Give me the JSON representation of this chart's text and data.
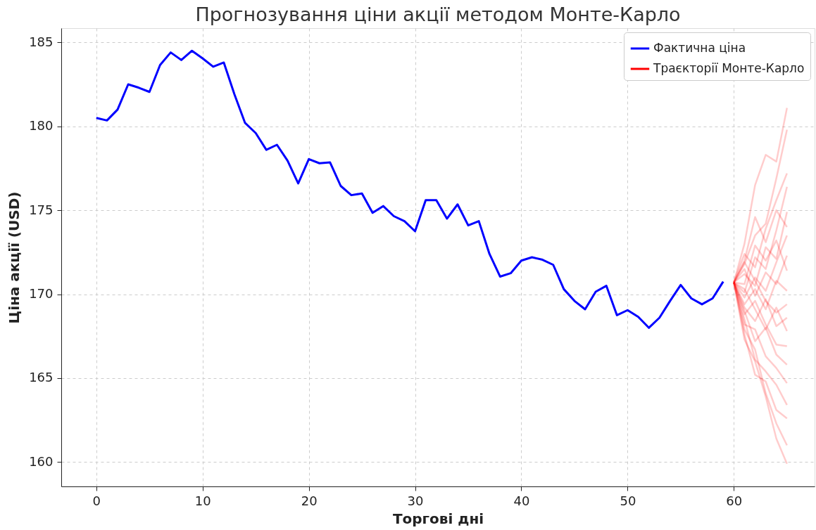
{
  "chart_data": {
    "type": "line",
    "title": "Прогнозування ціни акції методом Монте-Карло",
    "xlabel": "Торгові дні",
    "ylabel": "Ціна акції (USD)",
    "xlim": [
      -3.3,
      67.6
    ],
    "ylim": [
      158.55,
      185.85
    ],
    "xticks": [
      0,
      10,
      20,
      30,
      40,
      50,
      60
    ],
    "yticks": [
      160,
      165,
      170,
      175,
      180,
      185
    ],
    "grid": true,
    "legend": "top right",
    "line_style": "solid",
    "marker": "none",
    "series": [
      {
        "name": "Фактична ціна",
        "color": "#0000ff",
        "x": [
          0,
          1,
          2,
          3,
          4,
          5,
          6,
          7,
          8,
          9,
          10,
          11,
          12,
          13,
          14,
          15,
          16,
          17,
          18,
          19,
          20,
          21,
          22,
          23,
          24,
          25,
          26,
          27,
          28,
          29,
          30,
          31,
          32,
          33,
          34,
          35,
          36,
          37,
          38,
          39,
          40,
          41,
          42,
          43,
          44,
          45,
          46,
          47,
          48,
          49,
          50,
          51,
          52,
          53,
          54,
          55,
          56,
          57,
          58,
          59
        ],
        "values": [
          180.5,
          180.35,
          181.0,
          182.5,
          182.3,
          182.05,
          183.65,
          184.4,
          183.95,
          184.5,
          184.05,
          183.55,
          183.8,
          181.9,
          180.2,
          179.6,
          178.6,
          178.9,
          177.95,
          176.6,
          178.05,
          177.8,
          177.85,
          176.45,
          175.9,
          176.0,
          174.85,
          175.25,
          174.65,
          174.35,
          173.75,
          175.6,
          175.6,
          174.5,
          175.35,
          174.1,
          174.35,
          172.4,
          171.05,
          171.25,
          172.0,
          172.2,
          172.05,
          171.75,
          170.3,
          169.6,
          169.1,
          170.15,
          170.5,
          168.75,
          169.05,
          168.65,
          168.0,
          168.6,
          169.6,
          170.55,
          169.75,
          169.4,
          169.75,
          170.75
        ]
      },
      {
        "name": "Траєкторії Монте-Карло",
        "color": "#ff0000",
        "x": [
          60,
          61,
          62,
          63,
          64,
          65
        ],
        "values": [
          170.7,
          173.0,
          176.5,
          178.3,
          177.9,
          181.1
        ]
      },
      {
        "color": "#ff0000",
        "x": [
          60,
          61,
          62,
          63,
          64,
          65
        ],
        "values": [
          170.7,
          171.8,
          173.5,
          174.2,
          176.9,
          179.8
        ]
      },
      {
        "color": "#ff0000",
        "x": [
          60,
          61,
          62,
          63,
          64,
          65
        ],
        "values": [
          170.7,
          172.4,
          171.6,
          173.9,
          175.6,
          177.2
        ]
      },
      {
        "color": "#ff0000",
        "x": [
          60,
          61,
          62,
          63,
          64,
          65
        ],
        "values": [
          170.7,
          170.1,
          172.2,
          171.5,
          173.8,
          176.4
        ]
      },
      {
        "color": "#ff0000",
        "x": [
          60,
          61,
          62,
          63,
          64,
          65
        ],
        "values": [
          170.7,
          171.2,
          170.5,
          172.8,
          172.1,
          174.9
        ]
      },
      {
        "color": "#ff0000",
        "x": [
          60,
          61,
          62,
          63,
          64,
          65
        ],
        "values": [
          170.7,
          169.8,
          171.0,
          170.2,
          171.9,
          173.5
        ]
      },
      {
        "color": "#ff0000",
        "x": [
          60,
          61,
          62,
          63,
          64,
          65
        ],
        "values": [
          170.7,
          171.5,
          169.9,
          171.3,
          170.6,
          172.3
        ]
      },
      {
        "color": "#ff0000",
        "x": [
          60,
          61,
          62,
          63,
          64,
          65
        ],
        "values": [
          170.7,
          170.6,
          172.9,
          172.0,
          173.2,
          171.4
        ]
      },
      {
        "color": "#ff0000",
        "x": [
          60,
          61,
          62,
          63,
          64,
          65
        ],
        "values": [
          170.7,
          169.4,
          170.3,
          169.1,
          170.8,
          170.2
        ]
      },
      {
        "color": "#ff0000",
        "x": [
          60,
          61,
          62,
          63,
          64,
          65
        ],
        "values": [
          170.7,
          171.9,
          170.8,
          169.6,
          168.9,
          169.4
        ]
      },
      {
        "color": "#ff0000",
        "x": [
          60,
          61,
          62,
          63,
          64,
          65
        ],
        "values": [
          170.7,
          169.2,
          168.4,
          169.7,
          168.1,
          168.6
        ]
      },
      {
        "color": "#ff0000",
        "x": [
          60,
          61,
          62,
          63,
          64,
          65
        ],
        "values": [
          170.7,
          170.3,
          169.1,
          167.9,
          169.2,
          167.8
        ]
      },
      {
        "color": "#ff0000",
        "x": [
          60,
          61,
          62,
          63,
          64,
          65
        ],
        "values": [
          170.7,
          168.8,
          169.6,
          168.2,
          167.0,
          166.9
        ]
      },
      {
        "color": "#ff0000",
        "x": [
          60,
          61,
          62,
          63,
          64,
          65
        ],
        "values": [
          170.7,
          169.0,
          167.2,
          168.0,
          166.4,
          165.8
        ]
      },
      {
        "color": "#ff0000",
        "x": [
          60,
          61,
          62,
          63,
          64,
          65
        ],
        "values": [
          170.7,
          168.2,
          167.9,
          166.3,
          165.6,
          164.7
        ]
      },
      {
        "color": "#ff0000",
        "x": [
          60,
          61,
          62,
          63,
          64,
          65
        ],
        "values": [
          170.7,
          168.5,
          166.1,
          165.4,
          164.6,
          163.4
        ]
      },
      {
        "color": "#ff0000",
        "x": [
          60,
          61,
          62,
          63,
          64,
          65
        ],
        "values": [
          170.7,
          167.6,
          165.2,
          164.8,
          163.1,
          162.6
        ]
      },
      {
        "color": "#ff0000",
        "x": [
          60,
          61,
          62,
          63,
          64,
          65
        ],
        "values": [
          170.7,
          167.9,
          166.7,
          164.1,
          162.3,
          161.0
        ]
      },
      {
        "color": "#ff0000",
        "x": [
          60,
          61,
          62,
          63,
          64,
          65
        ],
        "values": [
          170.7,
          167.3,
          166.0,
          163.9,
          161.4,
          159.9
        ]
      },
      {
        "color": "#ff0000",
        "x": [
          60,
          61,
          62,
          63,
          64,
          65
        ],
        "values": [
          170.7,
          172.0,
          174.6,
          173.1,
          175.0,
          174.0
        ]
      }
    ]
  }
}
